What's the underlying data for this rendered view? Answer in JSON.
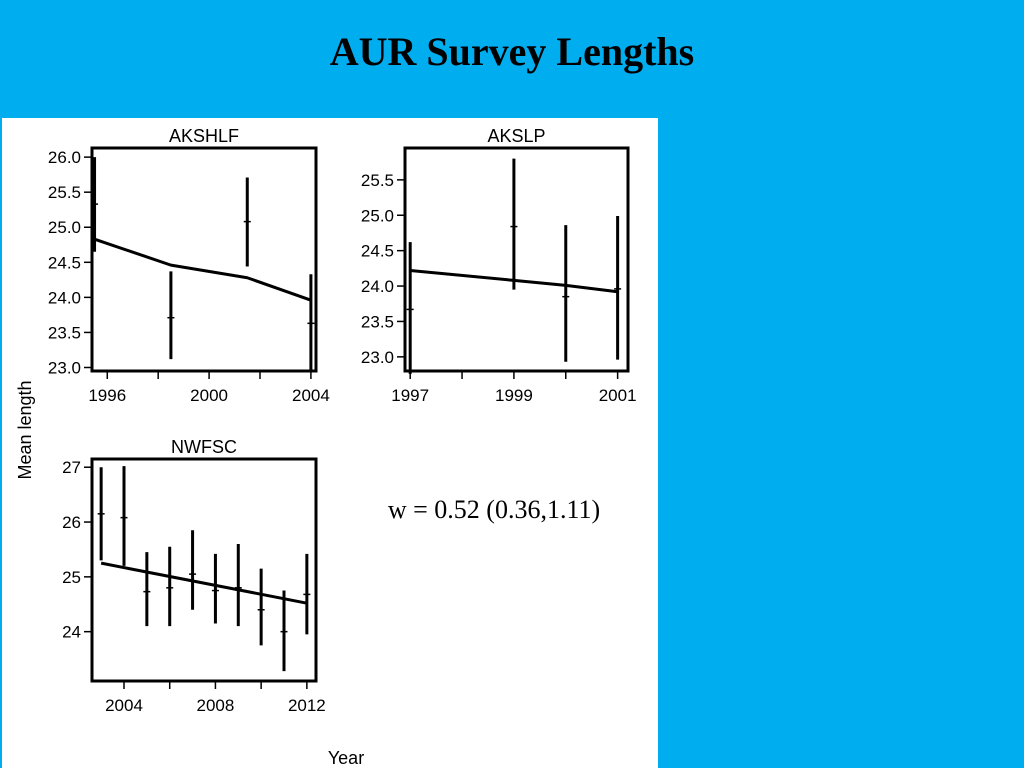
{
  "slide": {
    "title": "AUR Survey Lengths",
    "background_color": "#00AEEF"
  },
  "figure": {
    "xlabel": "Year",
    "ylabel": "Mean length",
    "annotation": "w = 0.52 (0.36,1.11)"
  },
  "chart_data": [
    {
      "type": "line",
      "title": "AKSHLF",
      "xlim": [
        1995.4,
        2004.2
      ],
      "ylim": [
        22.95,
        26.13
      ],
      "xticks": [
        1996,
        1998,
        2000,
        2002,
        2004
      ],
      "xtick_labels": [
        "1996",
        "",
        "2000",
        "",
        "2004"
      ],
      "yticks": [
        23.0,
        23.5,
        24.0,
        24.5,
        25.0,
        25.5,
        26.0
      ],
      "ytick_labels": [
        "23.0",
        "23.5",
        "24.0",
        "24.5",
        "25.0",
        "25.5",
        "26.0"
      ],
      "observations": [
        {
          "x": 1995.5,
          "mean": 25.33,
          "lower": 24.65,
          "upper": 26.0
        },
        {
          "x": 1998.5,
          "mean": 23.71,
          "lower": 23.12,
          "upper": 24.37
        },
        {
          "x": 2001.5,
          "mean": 25.08,
          "lower": 24.44,
          "upper": 25.71
        },
        {
          "x": 2004.0,
          "mean": 23.63,
          "lower": 22.93,
          "upper": 24.33
        }
      ],
      "fit": {
        "x": [
          1995.5,
          1998.5,
          2001.5,
          2004.0
        ],
        "y": [
          24.83,
          24.46,
          24.28,
          23.96
        ]
      }
    },
    {
      "type": "line",
      "title": "AKSLP",
      "xlim": [
        1996.9,
        2001.2
      ],
      "ylim": [
        22.8,
        25.95
      ],
      "xticks": [
        1997,
        1998,
        1999,
        2000,
        2001
      ],
      "xtick_labels": [
        "1997",
        "",
        "1999",
        "",
        "2001"
      ],
      "yticks": [
        23.0,
        23.5,
        24.0,
        24.5,
        25.0,
        25.5
      ],
      "ytick_labels": [
        "23.0",
        "23.5",
        "24.0",
        "24.5",
        "25.0",
        "25.5"
      ],
      "observations": [
        {
          "x": 1997.0,
          "mean": 23.67,
          "lower": 22.76,
          "upper": 24.62
        },
        {
          "x": 1999.0,
          "mean": 24.84,
          "lower": 23.95,
          "upper": 25.8
        },
        {
          "x": 2000.0,
          "mean": 23.85,
          "lower": 22.93,
          "upper": 24.86
        },
        {
          "x": 2001.0,
          "mean": 23.96,
          "lower": 22.96,
          "upper": 24.99
        }
      ],
      "fit": {
        "x": [
          1997.0,
          1999.0,
          2000.0,
          2001.0
        ],
        "y": [
          24.22,
          24.08,
          24.01,
          23.92
        ]
      }
    },
    {
      "type": "line",
      "title": "NWFSC",
      "xlim": [
        2002.6,
        2012.4
      ],
      "ylim": [
        23.1,
        27.15
      ],
      "xticks": [
        2004,
        2006,
        2008,
        2010,
        2012
      ],
      "xtick_labels": [
        "2004",
        "",
        "2008",
        "",
        "2012"
      ],
      "yticks": [
        24,
        25,
        26,
        27
      ],
      "ytick_labels": [
        "24",
        "25",
        "26",
        "27"
      ],
      "observations": [
        {
          "x": 2003,
          "mean": 26.15,
          "lower": 25.3,
          "upper": 27.0
        },
        {
          "x": 2004,
          "mean": 26.08,
          "lower": 25.2,
          "upper": 27.02
        },
        {
          "x": 2005,
          "mean": 24.73,
          "lower": 24.1,
          "upper": 25.45
        },
        {
          "x": 2006,
          "mean": 24.8,
          "lower": 24.1,
          "upper": 25.55
        },
        {
          "x": 2007,
          "mean": 25.05,
          "lower": 24.4,
          "upper": 25.85
        },
        {
          "x": 2008,
          "mean": 24.75,
          "lower": 24.15,
          "upper": 25.42
        },
        {
          "x": 2009,
          "mean": 24.8,
          "lower": 24.1,
          "upper": 25.6
        },
        {
          "x": 2010,
          "mean": 24.4,
          "lower": 23.75,
          "upper": 25.15
        },
        {
          "x": 2011,
          "mean": 24.0,
          "lower": 23.28,
          "upper": 24.75
        },
        {
          "x": 2012,
          "mean": 24.68,
          "lower": 23.95,
          "upper": 25.42
        }
      ],
      "fit": {
        "x": [
          2003,
          2012
        ],
        "y": [
          25.25,
          24.52
        ]
      }
    }
  ]
}
